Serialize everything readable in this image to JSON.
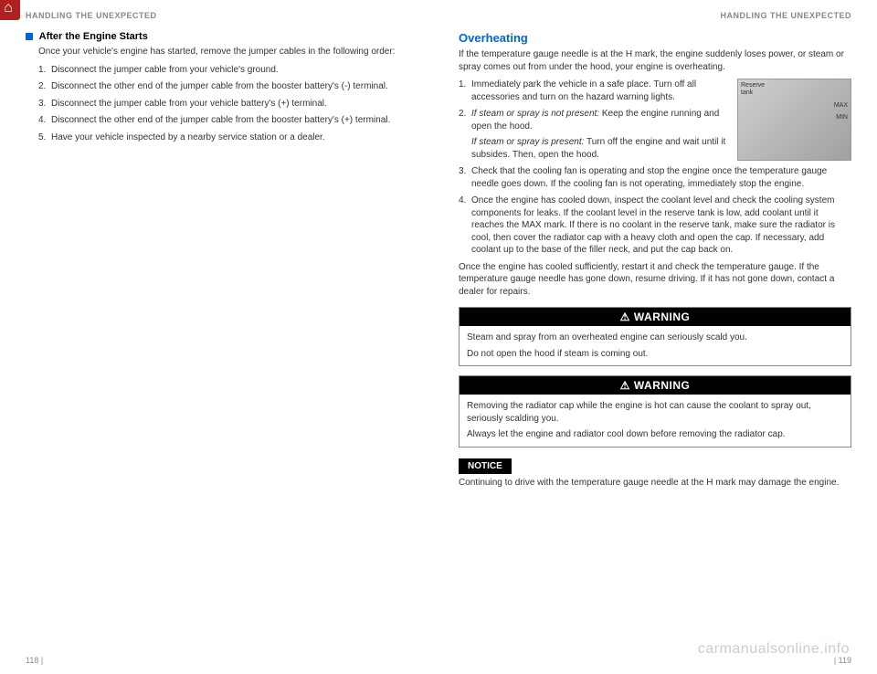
{
  "home_icon": "⌂",
  "left": {
    "header": "HANDLING THE UNEXPECTED",
    "section_title": "After the Engine Starts",
    "intro": "Once your vehicle's engine has started, remove the jumper cables in the following order:",
    "steps": [
      "Disconnect the jumper cable from your vehicle's ground.",
      "Disconnect the other end of the jumper cable from the booster battery's (-) terminal.",
      "Disconnect the jumper cable from your vehicle battery's (+) terminal.",
      "Disconnect the other end of the jumper cable from the booster battery's (+) terminal.",
      "Have your vehicle inspected by a nearby service station or a dealer."
    ],
    "page_number": "118    |"
  },
  "right": {
    "header": "HANDLING THE UNEXPECTED",
    "heading": "Overheating",
    "intro": "If the temperature gauge needle is at the H mark, the engine suddenly loses power, or steam or spray comes out from under the hood, your engine is overheating.",
    "steps": [
      {
        "num": "1.",
        "text": "Immediately park the vehicle in a safe place. Turn off all accessories and turn on the hazard warning lights.",
        "with_image": true
      },
      {
        "num": "2.",
        "italic_prefix": "If steam or spray is not present:",
        "text": " Keep the engine running and open the hood.",
        "sub_italic": "If steam or spray is present:",
        "sub_text": " Turn off the engine and wait until it subsides. Then, open the hood.",
        "with_image": true
      },
      {
        "num": "3.",
        "text": "Check that the cooling fan is operating and stop the engine once the temperature gauge needle goes down. If the cooling fan is not operating, immediately stop the engine."
      },
      {
        "num": "4.",
        "text": "Once the engine has cooled down, inspect the coolant level and check the cooling system components for leaks. If the coolant level in the reserve tank is low, add coolant until it reaches the MAX mark. If there is no coolant in the reserve tank, make sure the radiator is cool, then cover the radiator cap with a heavy cloth and open the cap. If necessary, add coolant up to the base of the filler neck, and put the cap back on."
      }
    ],
    "outro": "Once the engine has cooled sufficiently, restart it and check the temperature gauge. If the temperature gauge needle has gone down, resume driving. If it has not gone down, contact a dealer for repairs.",
    "image_labels": {
      "reserve": "Reserve\ntank",
      "max": "MAX",
      "min": "MIN"
    },
    "warning1": {
      "title": "WARNING",
      "line1": "Steam and spray from an overheated engine can seriously scald you.",
      "line2": "Do not open the hood if steam is coming out."
    },
    "warning2": {
      "title": "WARNING",
      "line1": "Removing the radiator cap while the engine is hot can cause the coolant to spray out, seriously scalding you.",
      "line2": "Always let the engine and radiator cool down before removing the radiator cap."
    },
    "notice_label": "NOTICE",
    "notice_text": "Continuing to drive with the temperature gauge needle at the H mark may damage the engine.",
    "page_number": "|    119"
  },
  "watermark": "carmanualsonline.info",
  "colors": {
    "blue": "#0066cc",
    "red": "#b02020",
    "gray": "#888888",
    "text": "#333333"
  }
}
